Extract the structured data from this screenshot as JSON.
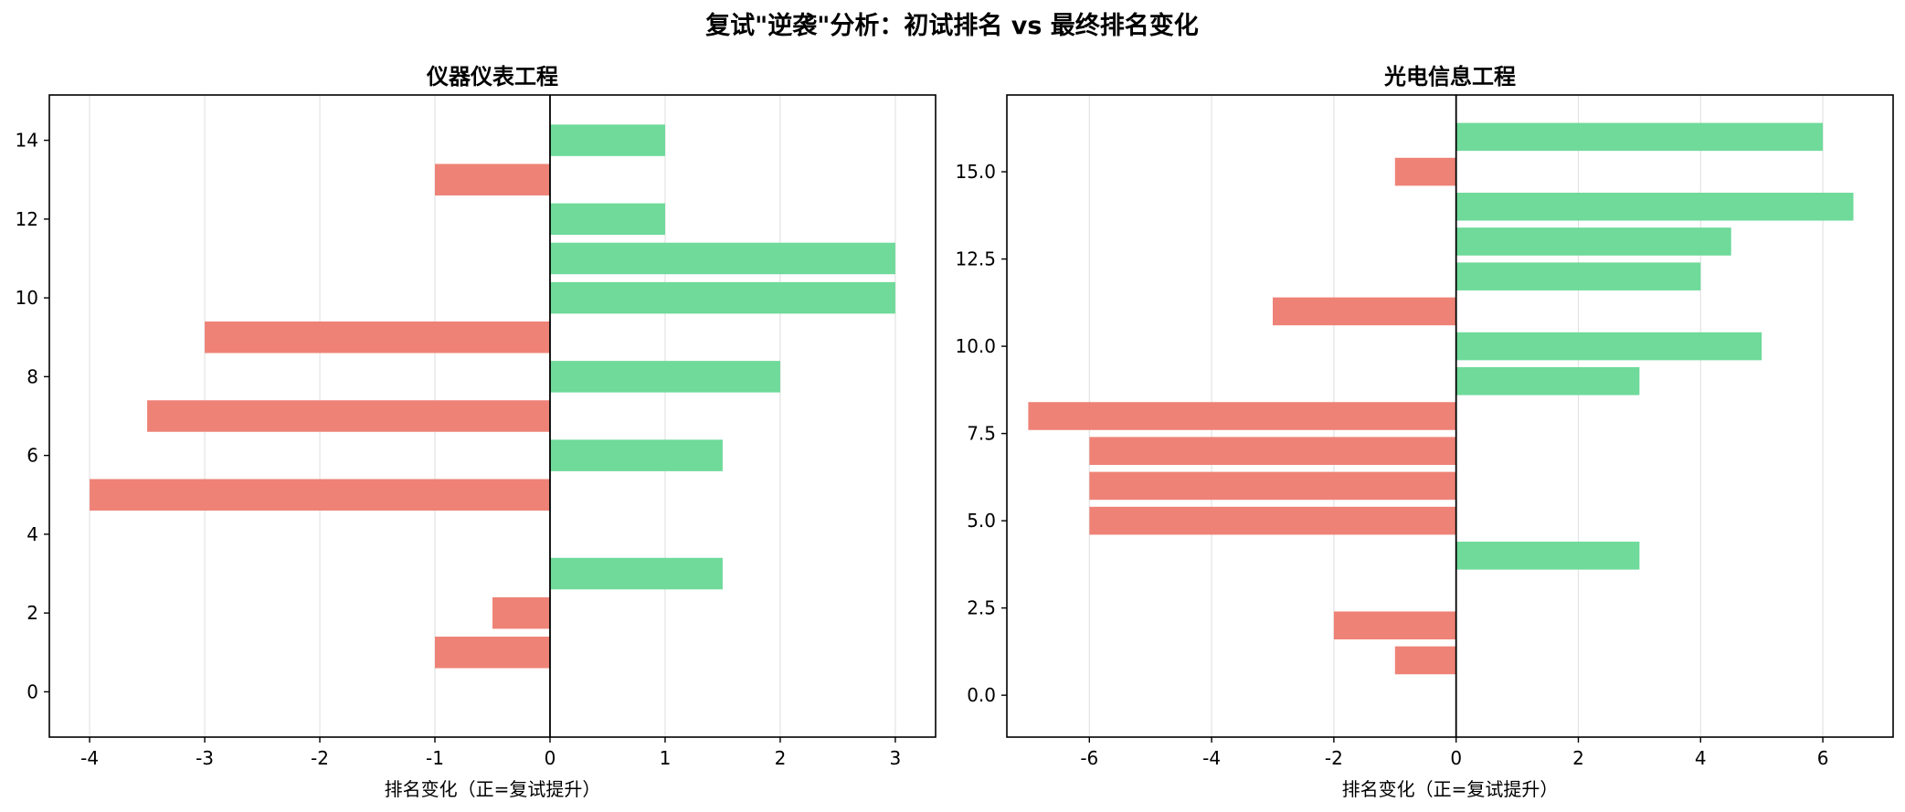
{
  "figure": {
    "title": "复试\"逆袭\"分析：初试排名 vs 最终排名变化"
  },
  "colors": {
    "positive": "#6fda9a",
    "negative": "#ee8276",
    "grid": "#e3e3e3",
    "zero_line": "#000000"
  },
  "chart_data": [
    {
      "type": "bar",
      "orientation": "horizontal",
      "title": "仪器仪表工程",
      "xlabel": "排名变化（正=复试提升）",
      "ylabel": "",
      "xlim": [
        -4.35,
        3.35
      ],
      "ylim": [
        -1.15,
        15.15
      ],
      "xticks": [
        -4,
        -3,
        -2,
        -1,
        0,
        1,
        2,
        3
      ],
      "xtick_labels": [
        "-4",
        "-3",
        "-2",
        "-1",
        "0",
        "1",
        "2",
        "3"
      ],
      "yticks": [
        0,
        2,
        4,
        6,
        8,
        10,
        12,
        14
      ],
      "ytick_labels": [
        "0",
        "2",
        "4",
        "6",
        "8",
        "10",
        "12",
        "14"
      ],
      "grid": "x-axis vertical lines",
      "bar_height": 0.8,
      "bars": [
        {
          "y": 1,
          "value": -1
        },
        {
          "y": 2,
          "value": -0.5
        },
        {
          "y": 3,
          "value": 1.5
        },
        {
          "y": 5,
          "value": -4
        },
        {
          "y": 6,
          "value": 1.5
        },
        {
          "y": 7,
          "value": -3.5
        },
        {
          "y": 8,
          "value": 2
        },
        {
          "y": 9,
          "value": -3
        },
        {
          "y": 10,
          "value": 3
        },
        {
          "y": 11,
          "value": 3
        },
        {
          "y": 12,
          "value": 1
        },
        {
          "y": 13,
          "value": -1
        },
        {
          "y": 14,
          "value": 1
        }
      ]
    },
    {
      "type": "bar",
      "orientation": "horizontal",
      "title": "光电信息工程",
      "xlabel": "排名变化（正=复试提升）",
      "ylabel": "",
      "xlim": [
        -7.35,
        7.15
      ],
      "ylim": [
        -1.2,
        17.2
      ],
      "xticks": [
        -6,
        -4,
        -2,
        0,
        2,
        4,
        6
      ],
      "xtick_labels": [
        "-6",
        "-4",
        "-2",
        "0",
        "2",
        "4",
        "6"
      ],
      "yticks": [
        0,
        2.5,
        5,
        7.5,
        10,
        12.5,
        15
      ],
      "ytick_labels": [
        "0.0",
        "2.5",
        "5.0",
        "7.5",
        "10.0",
        "12.5",
        "15.0"
      ],
      "grid": "x-axis vertical lines",
      "bar_height": 0.8,
      "bars": [
        {
          "y": 1,
          "value": -1
        },
        {
          "y": 2,
          "value": -2
        },
        {
          "y": 4,
          "value": 3
        },
        {
          "y": 5,
          "value": -6
        },
        {
          "y": 6,
          "value": -6
        },
        {
          "y": 7,
          "value": -6
        },
        {
          "y": 8,
          "value": -7
        },
        {
          "y": 9,
          "value": 3
        },
        {
          "y": 10,
          "value": 5
        },
        {
          "y": 11,
          "value": -3
        },
        {
          "y": 12,
          "value": 4
        },
        {
          "y": 13,
          "value": 4.5
        },
        {
          "y": 14,
          "value": 6.5
        },
        {
          "y": 15,
          "value": -1
        },
        {
          "y": 16,
          "value": 6
        }
      ]
    }
  ]
}
